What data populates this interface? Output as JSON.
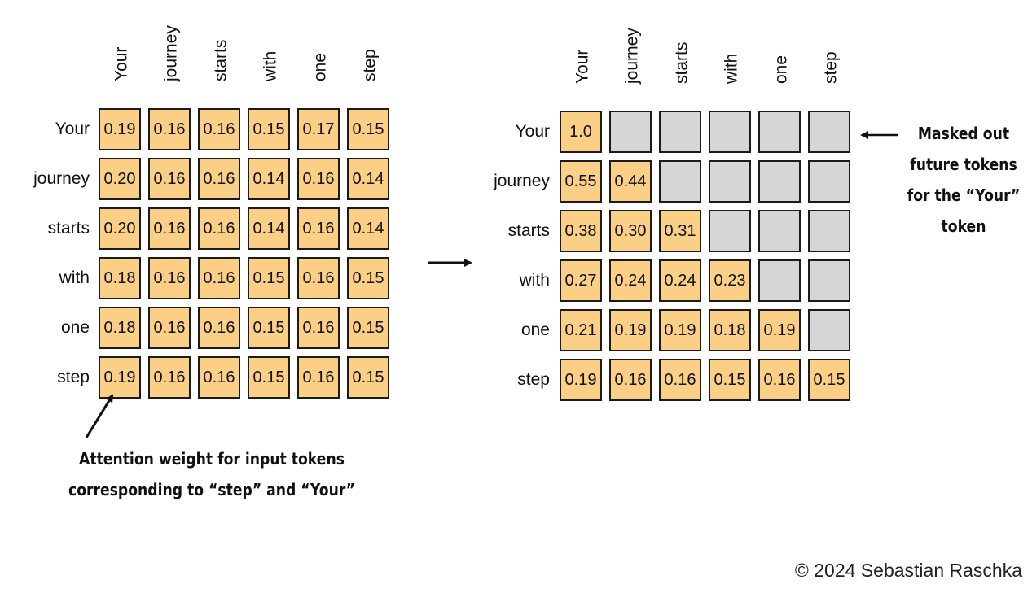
{
  "tokens": [
    "Your",
    "journey",
    "starts",
    "with",
    "one",
    "step"
  ],
  "left_matrix": {
    "rows": [
      [
        "0.19",
        "0.16",
        "0.16",
        "0.15",
        "0.17",
        "0.15"
      ],
      [
        "0.20",
        "0.16",
        "0.16",
        "0.14",
        "0.16",
        "0.14"
      ],
      [
        "0.20",
        "0.16",
        "0.16",
        "0.14",
        "0.16",
        "0.14"
      ],
      [
        "0.18",
        "0.16",
        "0.16",
        "0.15",
        "0.16",
        "0.15"
      ],
      [
        "0.18",
        "0.16",
        "0.16",
        "0.15",
        "0.16",
        "0.15"
      ],
      [
        "0.19",
        "0.16",
        "0.16",
        "0.15",
        "0.16",
        "0.15"
      ]
    ]
  },
  "right_matrix": {
    "rows": [
      [
        "1.0",
        null,
        null,
        null,
        null,
        null
      ],
      [
        "0.55",
        "0.44",
        null,
        null,
        null,
        null
      ],
      [
        "0.38",
        "0.30",
        "0.31",
        null,
        null,
        null
      ],
      [
        "0.27",
        "0.24",
        "0.24",
        "0.23",
        null,
        null
      ],
      [
        "0.21",
        "0.19",
        "0.19",
        "0.18",
        "0.19",
        null
      ],
      [
        "0.19",
        "0.16",
        "0.16",
        "0.15",
        "0.16",
        "0.15"
      ]
    ]
  },
  "annotations": {
    "attention_line1": "Attention weight for input tokens",
    "attention_line2": "corresponding to “step” and “Your”",
    "masked_line1": "Masked out",
    "masked_line2": "future tokens",
    "masked_line3": "for the “Your”",
    "masked_line4": "token"
  },
  "copyright": "© 2024 Sebastian Raschka",
  "colors": {
    "weight_cell": "#fbcf85",
    "masked_cell": "#d6d6d6",
    "border": "#1b1b1b"
  }
}
